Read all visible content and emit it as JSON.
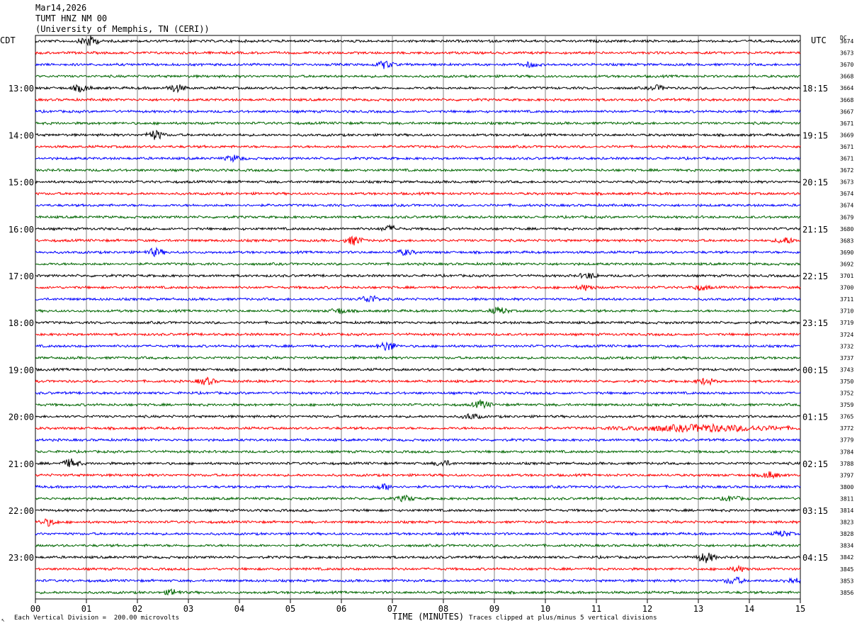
{
  "header": {
    "date": "Mar14,2026",
    "station": "TUMT HNZ NM 00",
    "network": "(University of Memphis, TN (CERI))"
  },
  "left_axis_title": "CDT",
  "right_axis_title": "UTC",
  "dc_title": "DC",
  "footer": {
    "scale_note": "Each Vertical Division =  200.00 microvolts",
    "clip_note": "Traces clipped at plus/minus 5 vertical divisions",
    "corner_mark": "↖"
  },
  "colors": {
    "trace_cycle": [
      "#000000",
      "#ff0000",
      "#0000ff",
      "#006600"
    ],
    "grid": "#808080"
  },
  "chart_data": {
    "type": "line",
    "xlabel": "TIME (MINUTES)",
    "xlim": [
      0,
      15
    ],
    "x_ticks": [
      "00",
      "01",
      "02",
      "03",
      "04",
      "05",
      "06",
      "07",
      "08",
      "09",
      "10",
      "11",
      "12",
      "13",
      "14",
      "15"
    ],
    "grid": "vertical lines each minute",
    "left_labels": [
      {
        "row": 4,
        "label": "13:00"
      },
      {
        "row": 8,
        "label": "14:00"
      },
      {
        "row": 12,
        "label": "15:00"
      },
      {
        "row": 16,
        "label": "16:00"
      },
      {
        "row": 20,
        "label": "17:00"
      },
      {
        "row": 24,
        "label": "18:00"
      },
      {
        "row": 28,
        "label": "19:00"
      },
      {
        "row": 32,
        "label": "20:00"
      },
      {
        "row": 36,
        "label": "21:00"
      },
      {
        "row": 40,
        "label": "22:00"
      },
      {
        "row": 44,
        "label": "23:00"
      }
    ],
    "right_labels": [
      {
        "row": 4,
        "label": "18:15"
      },
      {
        "row": 8,
        "label": "19:15"
      },
      {
        "row": 12,
        "label": "20:15"
      },
      {
        "row": 16,
        "label": "21:15"
      },
      {
        "row": 20,
        "label": "22:15"
      },
      {
        "row": 24,
        "label": "23:15"
      },
      {
        "row": 28,
        "label": "00:15"
      },
      {
        "row": 32,
        "label": "01:15"
      },
      {
        "row": 36,
        "label": "02:15"
      },
      {
        "row": 40,
        "label": "03:15"
      },
      {
        "row": 44,
        "label": "04:15"
      }
    ],
    "dc_offsets": [
      3674,
      3673,
      3670,
      3668,
      3664,
      3668,
      3667,
      3671,
      3669,
      3671,
      3671,
      3672,
      3673,
      3674,
      3674,
      3679,
      3680,
      3683,
      3690,
      3692,
      3701,
      3700,
      3711,
      3710,
      3719,
      3724,
      3732,
      3737,
      3743,
      3750,
      3752,
      3759,
      3765,
      3772,
      3779,
      3784,
      3788,
      3797,
      3800,
      3811,
      3814,
      3823,
      3828,
      3834,
      3842,
      3845,
      3853,
      3856
    ],
    "events": [
      {
        "row": 0,
        "minute": 1.05,
        "amp": 2.4
      },
      {
        "row": 2,
        "minute": 6.85,
        "amp": 1.6
      },
      {
        "row": 2,
        "minute": 9.7,
        "amp": 1.0
      },
      {
        "row": 4,
        "minute": 0.9,
        "amp": 1.4
      },
      {
        "row": 4,
        "minute": 2.75,
        "amp": 1.6
      },
      {
        "row": 4,
        "minute": 12.2,
        "amp": 1.0
      },
      {
        "row": 8,
        "minute": 2.35,
        "amp": 2.0
      },
      {
        "row": 10,
        "minute": 3.9,
        "amp": 1.2
      },
      {
        "row": 16,
        "minute": 6.95,
        "amp": 1.2
      },
      {
        "row": 17,
        "minute": 6.25,
        "amp": 1.8
      },
      {
        "row": 17,
        "minute": 14.7,
        "amp": 1.4
      },
      {
        "row": 18,
        "minute": 2.35,
        "amp": 1.6
      },
      {
        "row": 18,
        "minute": 7.25,
        "amp": 1.1
      },
      {
        "row": 20,
        "minute": 10.85,
        "amp": 1.2
      },
      {
        "row": 21,
        "minute": 10.8,
        "amp": 1.1
      },
      {
        "row": 21,
        "minute": 13.05,
        "amp": 1.1
      },
      {
        "row": 22,
        "minute": 6.55,
        "amp": 1.7
      },
      {
        "row": 23,
        "minute": 9.1,
        "amp": 1.5
      },
      {
        "row": 23,
        "minute": 5.95,
        "amp": 1.1
      },
      {
        "row": 26,
        "minute": 6.9,
        "amp": 2.0
      },
      {
        "row": 29,
        "minute": 3.35,
        "amp": 1.5
      },
      {
        "row": 29,
        "minute": 13.15,
        "amp": 1.4
      },
      {
        "row": 31,
        "minute": 8.75,
        "amp": 1.6
      },
      {
        "row": 32,
        "minute": 8.55,
        "amp": 1.2
      },
      {
        "row": 33,
        "minute": 13.1,
        "amp": 1.4,
        "width": 2.2
      },
      {
        "row": 36,
        "minute": 0.7,
        "amp": 1.8
      },
      {
        "row": 36,
        "minute": 8.0,
        "amp": 1.2
      },
      {
        "row": 37,
        "minute": 14.4,
        "amp": 1.4
      },
      {
        "row": 38,
        "minute": 6.85,
        "amp": 1.2
      },
      {
        "row": 39,
        "minute": 7.25,
        "amp": 1.1
      },
      {
        "row": 39,
        "minute": 13.65,
        "amp": 1.1
      },
      {
        "row": 41,
        "minute": 0.25,
        "amp": 1.4
      },
      {
        "row": 42,
        "minute": 14.65,
        "amp": 1.2
      },
      {
        "row": 44,
        "minute": 13.15,
        "amp": 2.2
      },
      {
        "row": 45,
        "minute": 13.8,
        "amp": 1.1
      },
      {
        "row": 46,
        "minute": 13.7,
        "amp": 1.6
      },
      {
        "row": 46,
        "minute": 14.85,
        "amp": 1.1
      },
      {
        "row": 47,
        "minute": 2.7,
        "amp": 1.2
      }
    ]
  }
}
